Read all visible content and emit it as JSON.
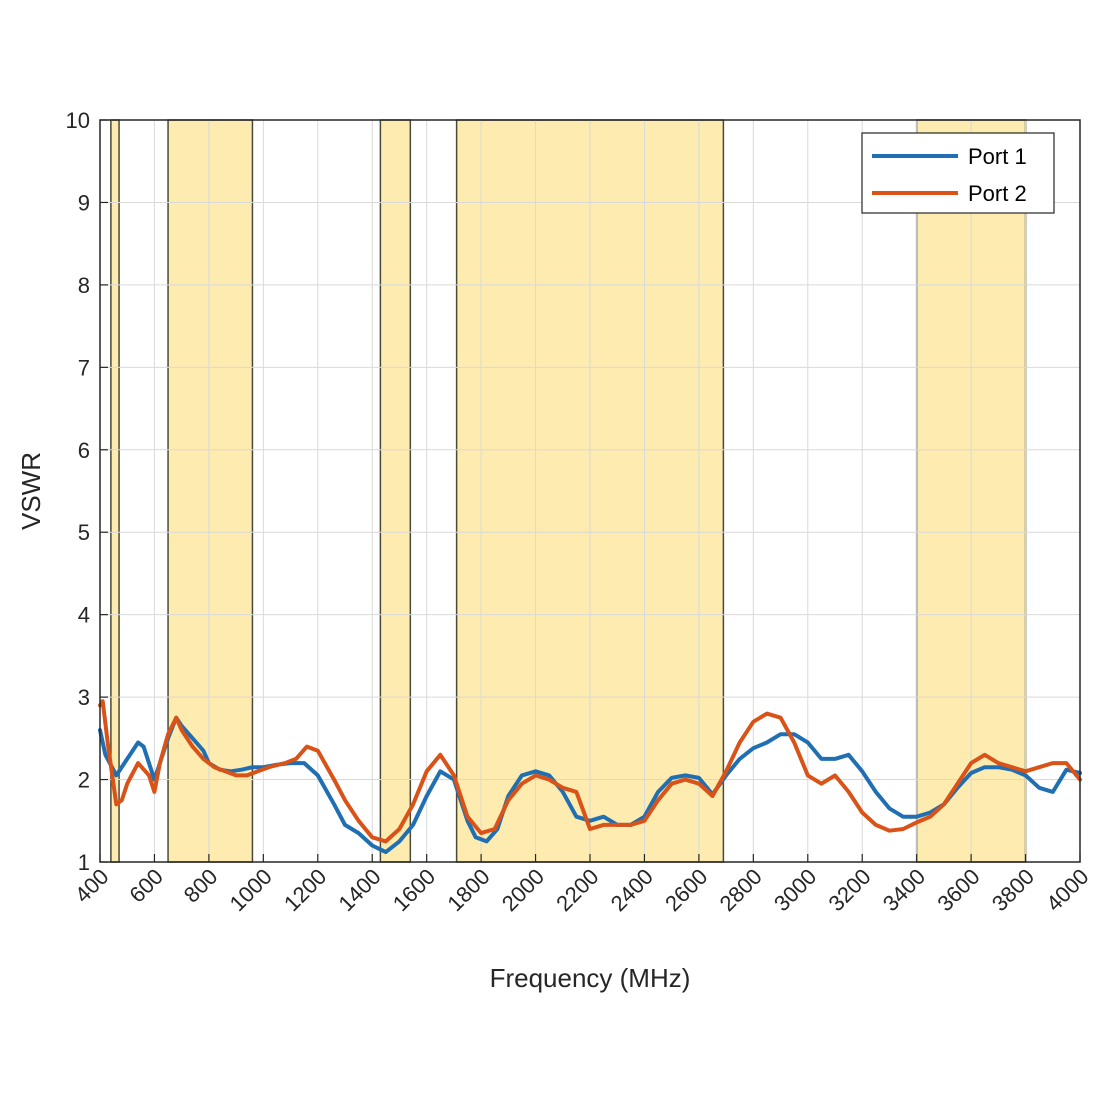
{
  "chart_data": {
    "type": "line",
    "title": "",
    "xlabel": "Frequency (MHz)",
    "ylabel": "VSWR",
    "xlim": [
      400,
      4000
    ],
    "ylim": [
      1,
      10
    ],
    "grid": true,
    "legend_position": "top-right",
    "x_ticks": [
      "400",
      "600",
      "800",
      "1000",
      "1200",
      "1400",
      "1600",
      "1800",
      "2000",
      "2200",
      "2400",
      "2600",
      "2800",
      "3000",
      "3200",
      "3400",
      "3600",
      "3800",
      "4000"
    ],
    "y_ticks": [
      "1",
      "2",
      "3",
      "4",
      "5",
      "6",
      "7",
      "8",
      "9",
      "10"
    ],
    "bands": [
      {
        "start": 440,
        "end": 470
      },
      {
        "start": 650,
        "end": 960
      },
      {
        "start": 1430,
        "end": 1540
      },
      {
        "start": 1710,
        "end": 2690
      },
      {
        "start": 3400,
        "end": 3800
      }
    ],
    "band_color": "#FDEBB0",
    "series": [
      {
        "name": "Port 1",
        "color": "#1F6FB2",
        "x": [
          400,
          420,
          460,
          500,
          540,
          560,
          600,
          620,
          650,
          680,
          700,
          740,
          780,
          800,
          840,
          880,
          920,
          960,
          1000,
          1050,
          1100,
          1150,
          1200,
          1260,
          1300,
          1350,
          1400,
          1450,
          1500,
          1550,
          1600,
          1650,
          1700,
          1750,
          1780,
          1820,
          1860,
          1900,
          1950,
          2000,
          2050,
          2100,
          2150,
          2200,
          2250,
          2300,
          2350,
          2400,
          2450,
          2500,
          2550,
          2600,
          2650,
          2700,
          2750,
          2800,
          2850,
          2900,
          2950,
          3000,
          3050,
          3100,
          3150,
          3200,
          3250,
          3300,
          3350,
          3400,
          3450,
          3500,
          3550,
          3600,
          3650,
          3700,
          3750,
          3800,
          3850,
          3900,
          3950,
          4000
        ],
        "y": [
          2.6,
          2.3,
          2.05,
          2.25,
          2.45,
          2.4,
          2.0,
          2.2,
          2.5,
          2.75,
          2.65,
          2.5,
          2.35,
          2.2,
          2.12,
          2.1,
          2.12,
          2.15,
          2.15,
          2.18,
          2.2,
          2.2,
          2.05,
          1.7,
          1.45,
          1.35,
          1.2,
          1.12,
          1.25,
          1.45,
          1.8,
          2.1,
          2.0,
          1.5,
          1.3,
          1.25,
          1.4,
          1.8,
          2.05,
          2.1,
          2.05,
          1.85,
          1.55,
          1.5,
          1.55,
          1.45,
          1.45,
          1.55,
          1.85,
          2.02,
          2.05,
          2.02,
          1.82,
          2.05,
          2.25,
          2.38,
          2.45,
          2.55,
          2.55,
          2.45,
          2.25,
          2.25,
          2.3,
          2.1,
          1.85,
          1.65,
          1.55,
          1.55,
          1.6,
          1.7,
          1.9,
          2.08,
          2.15,
          2.15,
          2.12,
          2.05,
          1.9,
          1.85,
          2.12,
          2.08
        ]
      },
      {
        "name": "Port 2",
        "color": "#D95319",
        "x": [
          400,
          410,
          430,
          460,
          480,
          500,
          540,
          580,
          600,
          620,
          650,
          680,
          700,
          740,
          780,
          820,
          860,
          900,
          940,
          980,
          1020,
          1080,
          1120,
          1160,
          1200,
          1260,
          1300,
          1350,
          1400,
          1450,
          1500,
          1550,
          1600,
          1650,
          1700,
          1750,
          1800,
          1850,
          1900,
          1950,
          2000,
          2050,
          2100,
          2150,
          2200,
          2250,
          2300,
          2350,
          2400,
          2450,
          2500,
          2550,
          2600,
          2650,
          2700,
          2750,
          2800,
          2850,
          2900,
          2950,
          3000,
          3050,
          3100,
          3150,
          3200,
          3250,
          3300,
          3350,
          3400,
          3450,
          3500,
          3550,
          3600,
          3650,
          3700,
          3750,
          3800,
          3850,
          3900,
          3950,
          4000
        ],
        "y": [
          2.9,
          2.95,
          2.4,
          1.7,
          1.75,
          1.95,
          2.2,
          2.05,
          1.85,
          2.2,
          2.55,
          2.75,
          2.6,
          2.4,
          2.25,
          2.15,
          2.1,
          2.05,
          2.05,
          2.1,
          2.15,
          2.2,
          2.25,
          2.4,
          2.35,
          2.0,
          1.75,
          1.5,
          1.3,
          1.25,
          1.4,
          1.7,
          2.1,
          2.3,
          2.05,
          1.55,
          1.35,
          1.4,
          1.75,
          1.95,
          2.05,
          2.0,
          1.9,
          1.85,
          1.4,
          1.45,
          1.45,
          1.45,
          1.5,
          1.75,
          1.95,
          2.0,
          1.95,
          1.8,
          2.1,
          2.45,
          2.7,
          2.8,
          2.75,
          2.45,
          2.05,
          1.95,
          2.05,
          1.85,
          1.6,
          1.45,
          1.38,
          1.4,
          1.48,
          1.55,
          1.7,
          1.95,
          2.2,
          2.3,
          2.2,
          2.15,
          2.1,
          2.15,
          2.2,
          2.2,
          2.0
        ]
      }
    ]
  }
}
